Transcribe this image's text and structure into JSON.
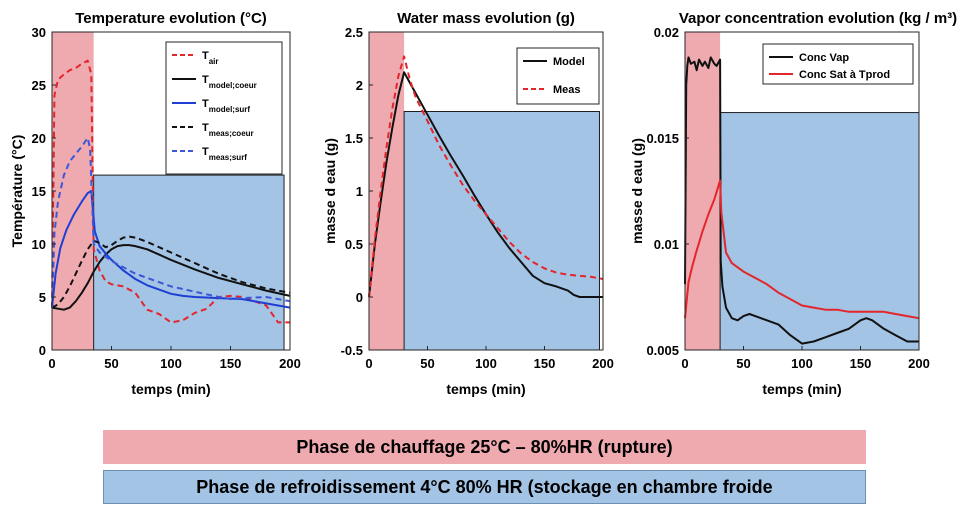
{
  "colors": {
    "heating_zone": "#efaab0",
    "cooling_zone": "#a4c4e6",
    "cooling_zone_border": "#1f1f1f",
    "red": "#e2262b",
    "black": "#111111",
    "blue": "#1f3fd4",
    "cool_blue_dashed": "#3b57d8"
  },
  "bands": {
    "heating": "Phase de chauffage 25°C – 80%HR (rupture)",
    "cooling": "Phase de refroidissement 4°C 80% HR (stockage en chambre froide"
  },
  "chart_data": [
    {
      "type": "line",
      "title": "Temperature evolution (°C)",
      "xlabel": "temps (min)",
      "ylabel": "Température (°C)",
      "xlim": [
        0,
        200
      ],
      "ylim": [
        0,
        30
      ],
      "xticks": [
        "0",
        "50",
        "100",
        "150",
        "200"
      ],
      "yticks": [
        "0",
        "5",
        "10",
        "15",
        "20",
        "25",
        "30"
      ],
      "zones": {
        "heating_x": [
          0,
          35
        ],
        "cooling_x": [
          35,
          195
        ],
        "cooling_y_top": 16.5
      },
      "legend_position": "top-right",
      "series": [
        {
          "main": "T",
          "sub": "air",
          "style": "dashed",
          "color": "#e2262b",
          "x": [
            0,
            2,
            5,
            10,
            15,
            20,
            25,
            30,
            33,
            35,
            40,
            45,
            50,
            60,
            70,
            80,
            90,
            100,
            110,
            120,
            130,
            140,
            150,
            160,
            170,
            180,
            190,
            200
          ],
          "y": [
            4,
            24,
            25.5,
            26,
            26.4,
            26.6,
            27,
            27.3,
            26,
            9.5,
            7.5,
            6.5,
            6.2,
            6,
            5.4,
            3.8,
            3.4,
            2.6,
            2.8,
            3.5,
            3.9,
            5,
            5.1,
            5,
            4.6,
            4.2,
            2.6,
            2.6
          ]
        },
        {
          "main": "T",
          "sub": "model;coeur",
          "style": "solid",
          "color": "#111111",
          "x": [
            0,
            5,
            10,
            15,
            20,
            25,
            30,
            35,
            40,
            45,
            50,
            55,
            60,
            65,
            70,
            80,
            90,
            100,
            120,
            140,
            160,
            180,
            200
          ],
          "y": [
            4,
            3.9,
            3.8,
            4,
            4.6,
            5.4,
            6.3,
            7.4,
            8.3,
            9,
            9.5,
            9.8,
            9.9,
            9.9,
            9.8,
            9.5,
            9,
            8.5,
            7.6,
            6.8,
            6.2,
            5.6,
            5.1
          ]
        },
        {
          "main": "T",
          "sub": "model;surf",
          "style": "solid",
          "color": "#1f3fd4",
          "x": [
            0,
            3,
            7,
            12,
            18,
            25,
            30,
            33,
            36,
            40,
            45,
            50,
            60,
            70,
            80,
            90,
            100,
            110,
            120,
            140,
            160,
            180,
            200
          ],
          "y": [
            4,
            7.2,
            9.6,
            11.3,
            12.7,
            14,
            14.8,
            15,
            11.2,
            9.8,
            9.1,
            8.5,
            7.5,
            6.7,
            6.1,
            5.7,
            5.3,
            5.1,
            5,
            4.9,
            4.8,
            4.4,
            4
          ]
        },
        {
          "main": "T",
          "sub": "meas;coeur",
          "style": "dashed",
          "color": "#111111",
          "x": [
            0,
            5,
            10,
            15,
            20,
            25,
            30,
            35,
            40,
            45,
            50,
            55,
            60,
            65,
            70,
            80,
            90,
            100,
            120,
            140,
            160,
            180,
            200
          ],
          "y": [
            4,
            4.3,
            5,
            6,
            7.2,
            8.4,
            9.5,
            10.3,
            10.1,
            9.7,
            9.9,
            10.3,
            10.6,
            10.7,
            10.6,
            10.2,
            9.7,
            9.2,
            8.2,
            7.2,
            6.4,
            5.8,
            5.4
          ]
        },
        {
          "main": "T",
          "sub": "meas;surf",
          "style": "dashed",
          "color": "#3b57d8",
          "x": [
            0,
            2,
            5,
            10,
            15,
            20,
            25,
            30,
            32,
            35,
            40,
            45,
            50,
            60,
            70,
            80,
            90,
            100,
            120,
            140,
            150,
            160,
            180,
            200
          ],
          "y": [
            4,
            11,
            14,
            16.5,
            17.8,
            18.5,
            19.2,
            20,
            19,
            10,
            9.2,
            8.8,
            8.4,
            7.8,
            7.2,
            6.8,
            6.4,
            6,
            5.5,
            5,
            4.8,
            4.9,
            5,
            4.6
          ]
        }
      ]
    },
    {
      "type": "line",
      "title": "Water mass evolution (g)",
      "xlabel": "temps (min)",
      "ylabel": "masse d eau (g)",
      "xlim": [
        0,
        200
      ],
      "ylim": [
        -0.5,
        2.5
      ],
      "xticks": [
        "0",
        "50",
        "100",
        "150",
        "200"
      ],
      "yticks": [
        "-0.5",
        "0",
        "0.5",
        "1",
        "1.5",
        "2",
        "2.5"
      ],
      "zones": {
        "heating_x": [
          0,
          30
        ],
        "cooling_x": [
          30,
          197
        ],
        "cooling_y_top": 1.75
      },
      "legend_position": "top-right",
      "series": [
        {
          "name": "Model",
          "style": "solid",
          "color": "#111111",
          "x": [
            0,
            5,
            10,
            15,
            20,
            25,
            30,
            35,
            40,
            50,
            60,
            70,
            80,
            90,
            100,
            110,
            120,
            130,
            140,
            150,
            160,
            170,
            175,
            180,
            190,
            200
          ],
          "y": [
            0,
            0.5,
            0.9,
            1.28,
            1.6,
            1.9,
            2.12,
            2.02,
            1.92,
            1.72,
            1.52,
            1.33,
            1.15,
            0.96,
            0.78,
            0.61,
            0.46,
            0.33,
            0.2,
            0.13,
            0.1,
            0.06,
            0.02,
            0,
            0,
            0
          ]
        },
        {
          "name": "Meas",
          "style": "dashed",
          "color": "#e2262b",
          "x": [
            0,
            5,
            10,
            15,
            20,
            25,
            30,
            35,
            40,
            50,
            60,
            70,
            80,
            90,
            100,
            110,
            120,
            130,
            140,
            150,
            160,
            170,
            180,
            190,
            200
          ],
          "y": [
            0,
            0.55,
            1,
            1.42,
            1.78,
            2.08,
            2.27,
            2.05,
            1.88,
            1.66,
            1.43,
            1.24,
            1.06,
            0.91,
            0.78,
            0.65,
            0.52,
            0.41,
            0.33,
            0.27,
            0.23,
            0.21,
            0.2,
            0.19,
            0.17
          ]
        }
      ]
    },
    {
      "type": "line",
      "title": "Vapor concentration evolution (kg / m³)",
      "xlabel": "temps (min)",
      "ylabel": "masse d eau (g)",
      "xlim": [
        0,
        200
      ],
      "ylim": [
        0.005,
        0.02
      ],
      "xticks": [
        "0",
        "50",
        "100",
        "150",
        "200"
      ],
      "yticks": [
        "0.005",
        "0.01",
        "0.015",
        "0.02"
      ],
      "zones": {
        "heating_x": [
          0,
          30
        ],
        "cooling_x": [
          30,
          200
        ],
        "cooling_y_top": 0.0162
      },
      "legend_position": "top-right",
      "series": [
        {
          "name": "Conc Vap",
          "style": "solid",
          "color": "#111111",
          "x": [
            0,
            1,
            2,
            3,
            5,
            8,
            10,
            12,
            15,
            17,
            20,
            22,
            25,
            27,
            30,
            30.5,
            32,
            35,
            40,
            45,
            50,
            55,
            60,
            70,
            80,
            90,
            100,
            110,
            120,
            130,
            140,
            150,
            155,
            160,
            170,
            180,
            190,
            200
          ],
          "y": [
            0.0081,
            0.0175,
            0.0184,
            0.0188,
            0.0185,
            0.0186,
            0.0182,
            0.0187,
            0.0184,
            0.0186,
            0.0183,
            0.0188,
            0.0185,
            0.0184,
            0.0187,
            0.0092,
            0.008,
            0.007,
            0.0065,
            0.0064,
            0.0066,
            0.0067,
            0.0066,
            0.0064,
            0.0062,
            0.0057,
            0.0053,
            0.0054,
            0.0056,
            0.0058,
            0.006,
            0.0064,
            0.0065,
            0.0064,
            0.006,
            0.0057,
            0.0054,
            0.0054
          ]
        },
        {
          "name": "Conc Sat à Tprod",
          "style": "solid",
          "color": "#e2262b",
          "x": [
            0,
            3,
            6,
            10,
            15,
            20,
            25,
            30,
            31,
            35,
            40,
            50,
            60,
            70,
            80,
            90,
            100,
            110,
            120,
            130,
            140,
            150,
            160,
            170,
            180,
            190,
            200
          ],
          "y": [
            0.0065,
            0.0082,
            0.0089,
            0.0097,
            0.0106,
            0.0114,
            0.0121,
            0.013,
            0.0115,
            0.0096,
            0.0091,
            0.0087,
            0.0084,
            0.0081,
            0.0077,
            0.0074,
            0.0071,
            0.007,
            0.0069,
            0.0069,
            0.0068,
            0.0068,
            0.0068,
            0.0068,
            0.0067,
            0.0066,
            0.0065
          ]
        }
      ]
    }
  ]
}
